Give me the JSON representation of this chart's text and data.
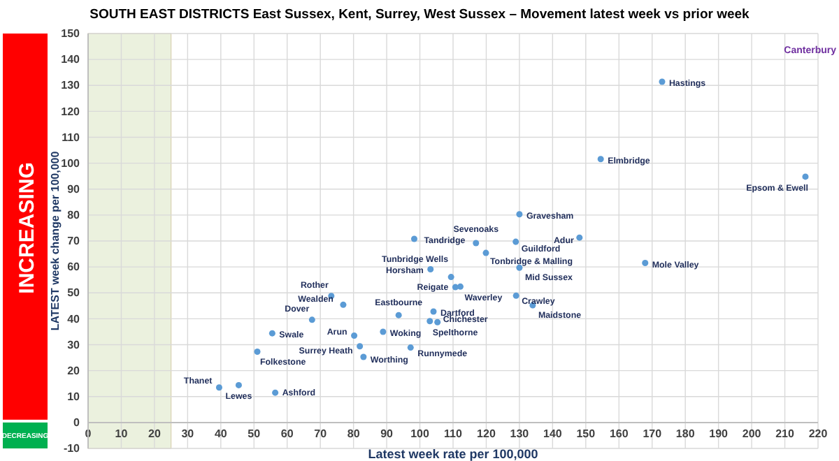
{
  "chart_data": {
    "type": "scatter",
    "title": "SOUTH EAST DISTRICTS East Sussex, Kent, Surrey, West Sussex – Movement latest week vs prior week",
    "xlabel": "Latest week rate per 100,000",
    "ylabel": "LATEST week change per 100,000",
    "x": [
      39.5,
      45.4,
      51,
      55.5,
      56.4,
      67.5,
      76.9,
      73.3,
      80.2,
      81.9,
      83,
      97.2,
      88.9,
      93.6,
      103,
      105.3,
      104.1,
      110.7,
      112.2,
      103.2,
      109.4,
      98.3,
      116.9,
      119.9,
      128.9,
      130,
      130,
      129,
      134,
      148.1,
      154.5,
      167.9,
      216.2,
      173
    ],
    "series": [
      {
        "color": "#5b9bd5",
        "values": [
          13.5,
          14.4,
          27.3,
          34.4,
          11.5,
          39.6,
          45.4,
          48.8,
          33.5,
          29.4,
          25.3,
          28.9,
          35,
          41.4,
          39.1,
          38.7,
          42.8,
          52.2,
          52.4,
          59.1,
          56.1,
          70.8,
          69.2,
          65.4,
          69.7,
          80.3,
          59.7,
          48.9,
          45.2,
          71.3,
          101.6,
          61.5,
          94.8,
          131.4
        ]
      }
    ],
    "marker": "circle",
    "grid": true,
    "xlim": [
      0,
      220
    ],
    "xticks": [
      0,
      10,
      20,
      30,
      40,
      50,
      60,
      70,
      80,
      90,
      100,
      110,
      120,
      130,
      140,
      150,
      160,
      170,
      180,
      190,
      200,
      210,
      220
    ],
    "ylim": [
      -10,
      150
    ],
    "yticks": [
      -10,
      0,
      10,
      20,
      30,
      40,
      50,
      60,
      70,
      80,
      90,
      100,
      110,
      120,
      130,
      140,
      150
    ],
    "bands": [
      {
        "axis": "x",
        "from": 0,
        "to": 25,
        "color": "#ebf1de"
      }
    ],
    "annotations": [
      "INCREASING",
      "DECREASING",
      "Canterbury",
      {
        "text": "Thanet",
        "x": 39.5,
        "y": 13.5
      },
      {
        "text": "Lewes",
        "x": 45.4,
        "y": 14.4
      },
      {
        "text": "Folkestone",
        "x": 51,
        "y": 27.3
      },
      {
        "text": "Swale",
        "x": 55.5,
        "y": 34.4
      },
      {
        "text": "Ashford",
        "x": 56.4,
        "y": 11.5
      },
      {
        "text": "Dover",
        "x": 67.5,
        "y": 39.6
      },
      {
        "text": "Wealden",
        "x": 76.9,
        "y": 45.4
      },
      {
        "text": "Rother",
        "x": 73.3,
        "y": 48.8
      },
      {
        "text": "Arun",
        "x": 80.2,
        "y": 33.5
      },
      {
        "text": "Surrey Heath",
        "x": 81.9,
        "y": 29.4
      },
      {
        "text": "Worthing",
        "x": 83,
        "y": 25.3
      },
      {
        "text": "Runnymede",
        "x": 97.2,
        "y": 28.9
      },
      {
        "text": "Woking",
        "x": 88.9,
        "y": 35
      },
      {
        "text": "Eastbourne",
        "x": 93.6,
        "y": 41.4
      },
      {
        "text": "Spelthorne",
        "x": 103,
        "y": 39.1
      },
      {
        "text": "Chichester",
        "x": 105.3,
        "y": 38.7
      },
      {
        "text": "Dartford",
        "x": 104.1,
        "y": 42.8
      },
      {
        "text": "Reigate",
        "x": 110.7,
        "y": 52.2
      },
      {
        "text": "Waverley",
        "x": 112.2,
        "y": 52.4
      },
      {
        "text": "Horsham",
        "x": 103.2,
        "y": 59.1
      },
      {
        "text": "Tunbridge Wells",
        "x": 109.4,
        "y": 56.1
      },
      {
        "text": "Tandridge",
        "x": 98.3,
        "y": 70.8
      },
      {
        "text": "Sevenoaks",
        "x": 116.9,
        "y": 69.2
      },
      {
        "text": "Tonbridge & Malling",
        "x": 119.9,
        "y": 65.4
      },
      {
        "text": "Guildford",
        "x": 128.9,
        "y": 69.7
      },
      {
        "text": "Gravesham",
        "x": 130,
        "y": 80.3
      },
      {
        "text": "Mid Sussex",
        "x": 130,
        "y": 59.7
      },
      {
        "text": "Crawley",
        "x": 129,
        "y": 48.9
      },
      {
        "text": "Maidstone",
        "x": 134,
        "y": 45.2
      },
      {
        "text": "Adur",
        "x": 148.1,
        "y": 71.3
      },
      {
        "text": "Elmbridge",
        "x": 154.5,
        "y": 101.6
      },
      {
        "text": "Mole Valley",
        "x": 167.9,
        "y": 61.5
      },
      {
        "text": "Epsom & Ewell",
        "x": 216.2,
        "y": 94.8
      },
      {
        "text": "Hastings",
        "x": 173,
        "y": 131.4
      }
    ]
  }
}
